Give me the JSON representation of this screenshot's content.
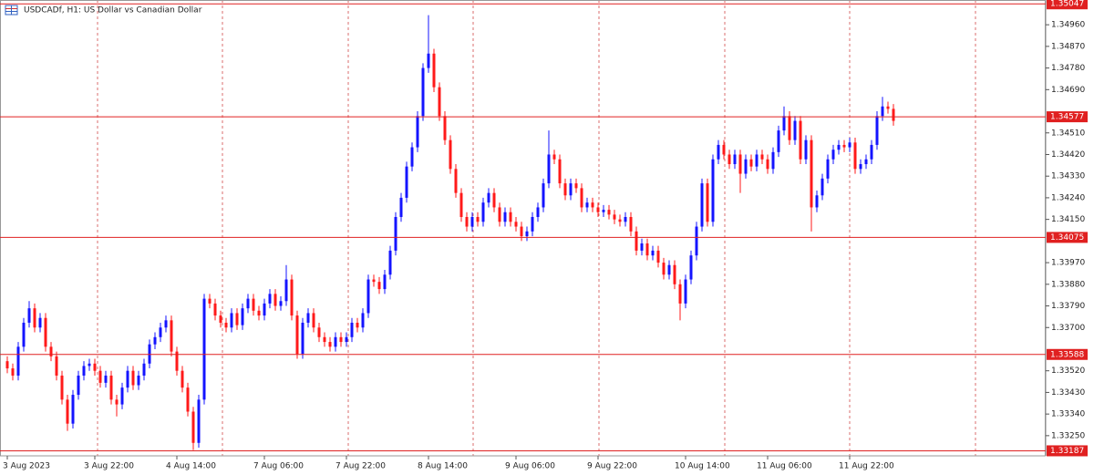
{
  "chart_data": {
    "type": "candlestick",
    "title": "USDCADf, H1:  US Dollar vs Canadian Dollar",
    "up_color": "#1414ff",
    "down_color": "#ff1a1a",
    "level_color": "#e02020",
    "ylim": [
      1.33166,
      1.35063
    ],
    "yticks": [
      {
        "value": 1.3496,
        "label": "1.34960"
      },
      {
        "value": 1.3487,
        "label": "1.34870"
      },
      {
        "value": 1.3478,
        "label": "1.34780"
      },
      {
        "value": 1.3469,
        "label": "1.34690"
      },
      {
        "value": 1.3451,
        "label": "1.34510"
      },
      {
        "value": 1.3442,
        "label": "1.34420"
      },
      {
        "value": 1.3433,
        "label": "1.34330"
      },
      {
        "value": 1.3424,
        "label": "1.34240"
      },
      {
        "value": 1.3415,
        "label": "1.34150"
      },
      {
        "value": 1.3397,
        "label": "1.33970"
      },
      {
        "value": 1.3388,
        "label": "1.33880"
      },
      {
        "value": 1.3379,
        "label": "1.33790"
      },
      {
        "value": 1.337,
        "label": "1.33700"
      },
      {
        "value": 1.3352,
        "label": "1.33520"
      },
      {
        "value": 1.3343,
        "label": "1.33430"
      },
      {
        "value": 1.3334,
        "label": "1.33340"
      },
      {
        "value": 1.3325,
        "label": "1.33250"
      }
    ],
    "xticks": [
      {
        "value": 0,
        "label": "3 Aug 2023"
      },
      {
        "value": 16,
        "label": "3 Aug 22:00"
      },
      {
        "value": 31,
        "label": "4 Aug 14:00"
      },
      {
        "value": 47,
        "label": "7 Aug 06:00"
      },
      {
        "value": 62,
        "label": "7 Aug 22:00"
      },
      {
        "value": 77,
        "label": "8 Aug 14:00"
      },
      {
        "value": 93,
        "label": "9 Aug 06:00"
      },
      {
        "value": 108,
        "label": "9 Aug 22:00"
      },
      {
        "value": 124,
        "label": "10 Aug 14:00"
      },
      {
        "value": 139,
        "label": "11 Aug 06:00"
      },
      {
        "value": 154,
        "label": "11 Aug 22:00"
      }
    ],
    "levels": [
      1.35047,
      1.34577,
      1.34075,
      1.33588,
      1.33187
    ],
    "open": [
      1.3356,
      1.3353,
      1.335,
      1.3362,
      1.3372,
      1.3378,
      1.337,
      1.3374,
      1.3362,
      1.3358,
      1.335,
      1.334,
      1.333,
      1.3342,
      1.335,
      1.3354,
      1.3355,
      1.3352,
      1.3347,
      1.335,
      1.334,
      1.3338,
      1.3345,
      1.3352,
      1.3346,
      1.335,
      1.3355,
      1.3363,
      1.3366,
      1.337,
      1.3373,
      1.336,
      1.3352,
      1.3345,
      1.3335,
      1.3322,
      1.334,
      1.3382,
      1.338,
      1.3375,
      1.3372,
      1.337,
      1.3376,
      1.3371,
      1.3378,
      1.3382,
      1.3377,
      1.3375,
      1.338,
      1.3384,
      1.3379,
      1.3381,
      1.339,
      1.3375,
      1.3359,
      1.3372,
      1.3376,
      1.337,
      1.3366,
      1.3364,
      1.3362,
      1.3366,
      1.3364,
      1.3366,
      1.3372,
      1.337,
      1.3376,
      1.339,
      1.3389,
      1.3386,
      1.3392,
      1.3402,
      1.3416,
      1.3424,
      1.3437,
      1.3445,
      1.3458,
      1.3478,
      1.3484,
      1.347,
      1.3458,
      1.3448,
      1.3436,
      1.3426,
      1.3416,
      1.3412,
      1.3416,
      1.3414,
      1.3422,
      1.3426,
      1.342,
      1.3414,
      1.3418,
      1.3414,
      1.3412,
      1.3408,
      1.341,
      1.3416,
      1.342,
      1.343,
      1.3442,
      1.344,
      1.343,
      1.3425,
      1.343,
      1.3428,
      1.342,
      1.3422,
      1.342,
      1.3418,
      1.3419,
      1.3417,
      1.3415,
      1.3414,
      1.3416,
      1.341,
      1.3402,
      1.3405,
      1.34,
      1.3402,
      1.3397,
      1.3392,
      1.3396,
      1.3388,
      1.338,
      1.339,
      1.34,
      1.3412,
      1.343,
      1.3414,
      1.344,
      1.3446,
      1.3442,
      1.3438,
      1.3442,
      1.3434,
      1.344,
      1.3437,
      1.3442,
      1.344,
      1.3436,
      1.3443,
      1.3452,
      1.3458,
      1.3448,
      1.3456,
      1.344,
      1.3448,
      1.342,
      1.3425,
      1.3432,
      1.344,
      1.3444,
      1.3446,
      1.3445,
      1.3447,
      1.3436,
      1.3438,
      1.344,
      1.3446,
      1.3458,
      1.3462,
      1.3461
    ],
    "high": [
      1.3358,
      1.3355,
      1.3364,
      1.3374,
      1.3381,
      1.338,
      1.3376,
      1.3376,
      1.3364,
      1.336,
      1.3352,
      1.3342,
      1.3344,
      1.3352,
      1.3356,
      1.3357,
      1.3357,
      1.3354,
      1.3352,
      1.3352,
      1.3342,
      1.3347,
      1.3354,
      1.3354,
      1.3352,
      1.3357,
      1.3365,
      1.3368,
      1.3372,
      1.3375,
      1.3375,
      1.3362,
      1.3354,
      1.3347,
      1.3337,
      1.3342,
      1.3384,
      1.3384,
      1.3382,
      1.3377,
      1.3374,
      1.3378,
      1.3378,
      1.338,
      1.3384,
      1.3384,
      1.3379,
      1.3382,
      1.3386,
      1.3386,
      1.3383,
      1.3396,
      1.3392,
      1.3377,
      1.3374,
      1.3378,
      1.3378,
      1.3372,
      1.3368,
      1.3366,
      1.3368,
      1.3368,
      1.3368,
      1.3374,
      1.3374,
      1.3378,
      1.3392,
      1.3392,
      1.3391,
      1.3394,
      1.3404,
      1.3418,
      1.3426,
      1.3439,
      1.3447,
      1.346,
      1.348,
      1.35,
      1.3486,
      1.3472,
      1.346,
      1.345,
      1.3438,
      1.3428,
      1.3418,
      1.3418,
      1.3418,
      1.3424,
      1.3428,
      1.3428,
      1.3422,
      1.342,
      1.342,
      1.3416,
      1.3414,
      1.3412,
      1.3418,
      1.3422,
      1.3432,
      1.3452,
      1.3444,
      1.3442,
      1.3432,
      1.3432,
      1.3432,
      1.343,
      1.3424,
      1.3424,
      1.3422,
      1.3421,
      1.3421,
      1.3419,
      1.3417,
      1.3418,
      1.3418,
      1.3412,
      1.3407,
      1.3407,
      1.3404,
      1.3404,
      1.3399,
      1.3398,
      1.3398,
      1.339,
      1.3392,
      1.3402,
      1.3414,
      1.3432,
      1.3432,
      1.3442,
      1.3448,
      1.3448,
      1.3444,
      1.3444,
      1.3444,
      1.3442,
      1.3442,
      1.3444,
      1.3444,
      1.3442,
      1.3445,
      1.3454,
      1.3462,
      1.346,
      1.3458,
      1.3458,
      1.345,
      1.345,
      1.3427,
      1.3434,
      1.3442,
      1.3446,
      1.3448,
      1.3448,
      1.3449,
      1.3449,
      1.344,
      1.3442,
      1.3448,
      1.346,
      1.3466,
      1.3464,
      1.3463
    ],
    "low": [
      1.3351,
      1.3348,
      1.3348,
      1.336,
      1.337,
      1.3368,
      1.3368,
      1.336,
      1.3356,
      1.3348,
      1.3338,
      1.3327,
      1.3328,
      1.334,
      1.3348,
      1.3352,
      1.335,
      1.3345,
      1.3345,
      1.3338,
      1.3333,
      1.3336,
      1.3343,
      1.3344,
      1.3344,
      1.3348,
      1.3353,
      1.3361,
      1.3364,
      1.3368,
      1.3358,
      1.335,
      1.3343,
      1.3333,
      1.3319,
      1.332,
      1.3338,
      1.3378,
      1.3373,
      1.337,
      1.3368,
      1.3368,
      1.3369,
      1.3369,
      1.3376,
      1.3375,
      1.3373,
      1.3373,
      1.3378,
      1.3377,
      1.3377,
      1.3379,
      1.3373,
      1.3357,
      1.3357,
      1.337,
      1.3368,
      1.3364,
      1.3362,
      1.336,
      1.336,
      1.3362,
      1.3362,
      1.3364,
      1.3368,
      1.3368,
      1.3374,
      1.3387,
      1.3384,
      1.3384,
      1.339,
      1.34,
      1.3414,
      1.3422,
      1.3435,
      1.3443,
      1.3456,
      1.3476,
      1.3468,
      1.3456,
      1.3446,
      1.3434,
      1.3424,
      1.3414,
      1.341,
      1.341,
      1.3412,
      1.3412,
      1.342,
      1.3418,
      1.3412,
      1.3412,
      1.3412,
      1.341,
      1.3406,
      1.3406,
      1.3408,
      1.3414,
      1.3418,
      1.3428,
      1.3438,
      1.3428,
      1.3423,
      1.3423,
      1.3426,
      1.3418,
      1.3418,
      1.3418,
      1.3416,
      1.3416,
      1.3415,
      1.3413,
      1.3412,
      1.3412,
      1.3408,
      1.34,
      1.34,
      1.3398,
      1.3398,
      1.3395,
      1.339,
      1.339,
      1.3386,
      1.3373,
      1.3378,
      1.3388,
      1.3398,
      1.341,
      1.3412,
      1.3412,
      1.3438,
      1.344,
      1.3436,
      1.3436,
      1.3426,
      1.3432,
      1.3435,
      1.3435,
      1.3438,
      1.3434,
      1.3434,
      1.3441,
      1.345,
      1.3446,
      1.3446,
      1.3438,
      1.3438,
      1.341,
      1.3418,
      1.3423,
      1.343,
      1.3438,
      1.3442,
      1.3443,
      1.3443,
      1.3434,
      1.3434,
      1.3436,
      1.3438,
      1.3444,
      1.3456,
      1.3459,
      1.3454
    ],
    "close": [
      1.3353,
      1.335,
      1.3362,
      1.3372,
      1.3378,
      1.337,
      1.3374,
      1.3362,
      1.3358,
      1.335,
      1.334,
      1.333,
      1.3342,
      1.335,
      1.3354,
      1.3355,
      1.3352,
      1.3347,
      1.335,
      1.334,
      1.3338,
      1.3345,
      1.3352,
      1.3346,
      1.335,
      1.3355,
      1.3363,
      1.3366,
      1.337,
      1.3373,
      1.336,
      1.3352,
      1.3345,
      1.3335,
      1.3322,
      1.334,
      1.3382,
      1.338,
      1.3375,
      1.3372,
      1.337,
      1.3376,
      1.3371,
      1.3378,
      1.3382,
      1.3377,
      1.3375,
      1.338,
      1.3384,
      1.3379,
      1.3381,
      1.339,
      1.3375,
      1.3359,
      1.3372,
      1.3376,
      1.337,
      1.3366,
      1.3364,
      1.3362,
      1.3366,
      1.3364,
      1.3366,
      1.3372,
      1.337,
      1.3376,
      1.339,
      1.3389,
      1.3386,
      1.3392,
      1.3402,
      1.3416,
      1.3424,
      1.3437,
      1.3445,
      1.3458,
      1.3478,
      1.3484,
      1.347,
      1.3458,
      1.3448,
      1.3436,
      1.3426,
      1.3416,
      1.3412,
      1.3416,
      1.3414,
      1.3422,
      1.3426,
      1.342,
      1.3414,
      1.3418,
      1.3414,
      1.3412,
      1.3408,
      1.341,
      1.3416,
      1.342,
      1.343,
      1.3442,
      1.344,
      1.343,
      1.3425,
      1.343,
      1.3428,
      1.342,
      1.3422,
      1.342,
      1.3418,
      1.3419,
      1.3417,
      1.3415,
      1.3414,
      1.3416,
      1.341,
      1.3402,
      1.3405,
      1.34,
      1.3402,
      1.3397,
      1.3392,
      1.3396,
      1.3388,
      1.338,
      1.339,
      1.34,
      1.3412,
      1.343,
      1.3414,
      1.344,
      1.3446,
      1.3442,
      1.3438,
      1.3442,
      1.3434,
      1.344,
      1.3437,
      1.3442,
      1.344,
      1.3436,
      1.3443,
      1.3452,
      1.3458,
      1.3448,
      1.3456,
      1.344,
      1.3448,
      1.342,
      1.3425,
      1.3432,
      1.344,
      1.3444,
      1.3446,
      1.3445,
      1.3447,
      1.3436,
      1.3438,
      1.344,
      1.3446,
      1.3458,
      1.3462,
      1.3461,
      1.3456
    ]
  }
}
